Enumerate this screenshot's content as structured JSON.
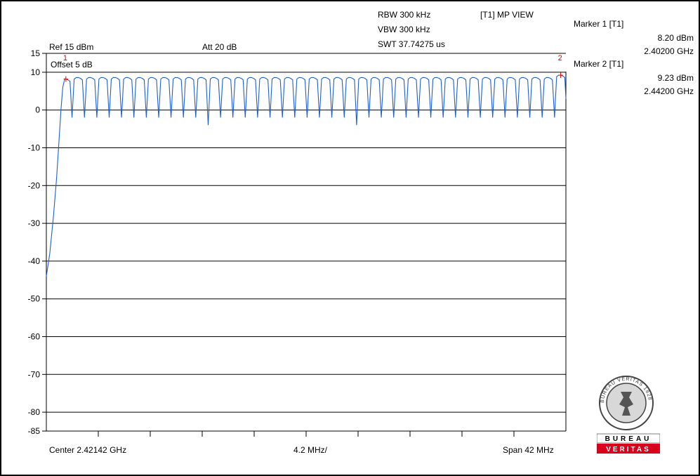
{
  "header": {
    "rbw": "RBW 300 kHz",
    "vbw": "VBW 300 kHz",
    "swt": "SWT 37.74275 us",
    "trace_mode": "[T1] MP VIEW",
    "ref_level": "Ref 15 dBm",
    "attenuation": "Att  20 dB",
    "offset": "Offset 5 dB"
  },
  "markers": [
    {
      "title": "Marker 1 [T1]",
      "level": "8.20 dBm",
      "freq": "2.40200 GHz",
      "num": "1"
    },
    {
      "title": "Marker 2 [T1]",
      "level": "9.23 dBm",
      "freq": "2.44200 GHz",
      "num": "2"
    }
  ],
  "footer": {
    "center": "Center 2.42142 GHz",
    "per_div": "4.2 MHz/",
    "span": "Span 42 MHz"
  },
  "logo": {
    "bottom_text_1": "BUREAU",
    "bottom_text_2": "VERITAS",
    "seal_text": "BUREAU VERITAS 1828"
  },
  "chart_data": {
    "type": "line",
    "xlabel": "",
    "ylabel": "",
    "x_unit": "GHz",
    "y_unit": "dBm",
    "xlim": [
      2.40042,
      2.44242
    ],
    "ylim": [
      -85,
      15
    ],
    "y_ticks": [
      15,
      10,
      0,
      -10,
      -20,
      -30,
      -40,
      -50,
      -60,
      -70,
      -80,
      -85
    ],
    "y_tick_labels": [
      "15",
      "10",
      "0",
      "-10",
      "-20",
      "-30",
      "-40",
      "-50",
      "-60",
      "-70",
      "-80",
      "-85"
    ],
    "grid": true,
    "color": "#1f5fd0",
    "marker_color": "#e00000",
    "hop_channels": {
      "first_center": 2.402,
      "spacing": 0.001,
      "count": 41,
      "peak_level": 8.6,
      "dip_level": -2.0,
      "deep_dips": [
        {
          "x": 2.4135,
          "y": -4.0
        },
        {
          "x": 2.4255,
          "y": -4.0
        }
      ]
    },
    "rolloff": [
      {
        "x": 2.40042,
        "y": -44
      },
      {
        "x": 2.4007,
        "y": -38
      },
      {
        "x": 2.401,
        "y": -28
      },
      {
        "x": 2.40125,
        "y": -18
      },
      {
        "x": 2.40145,
        "y": -8
      },
      {
        "x": 2.4016,
        "y": 0
      },
      {
        "x": 2.40175,
        "y": 6
      },
      {
        "x": 2.4019,
        "y": 8.2
      }
    ],
    "markers": [
      {
        "name": "1",
        "x": 2.402,
        "y": 8.2
      },
      {
        "name": "2",
        "x": 2.442,
        "y": 9.23
      }
    ],
    "end_point": {
      "x": 2.44242,
      "y": 3
    }
  }
}
